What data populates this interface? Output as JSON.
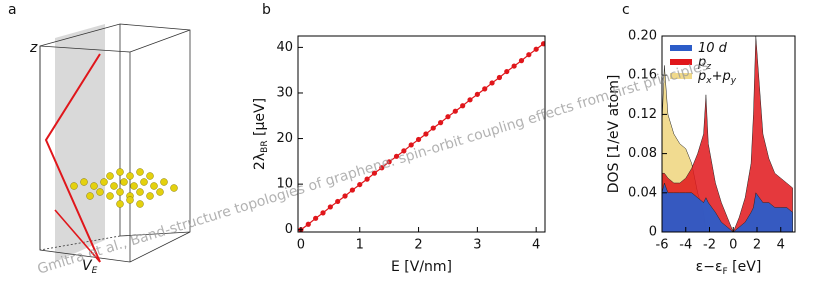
{
  "watermark": "Gmitra et al., Band-structure topologies of graphene: spin-orbit coupling effects from first principles",
  "chart_data": [
    {
      "type": "diagram",
      "panel_label": "a",
      "axis_label": "z",
      "field_label": [
        "V",
        "E"
      ]
    },
    {
      "type": "line",
      "panel_label": "b",
      "xlabel": [
        "E",
        " [V/nm]"
      ],
      "ylabel": [
        "2λ",
        "BR",
        " [μeV]"
      ],
      "x": [
        0,
        0.125,
        0.25,
        0.375,
        0.5,
        0.625,
        0.75,
        0.875,
        1,
        1.125,
        1.25,
        1.375,
        1.5,
        1.625,
        1.75,
        1.875,
        2,
        2.125,
        2.25,
        2.375,
        2.5,
        2.625,
        2.75,
        2.875,
        3,
        3.125,
        3.25,
        3.375,
        3.5,
        3.625,
        3.75,
        3.875,
        4,
        4.125
      ],
      "series": [
        {
          "color": "#e0161b",
          "values": [
            0,
            1.2,
            2.5,
            3.7,
            5.0,
            6.2,
            7.4,
            8.7,
            9.9,
            11.1,
            12.4,
            13.6,
            14.9,
            16.1,
            17.3,
            18.6,
            19.8,
            21.0,
            22.3,
            23.5,
            24.8,
            26.0,
            27.2,
            28.5,
            29.7,
            30.9,
            32.2,
            33.4,
            34.7,
            35.9,
            37.1,
            38.4,
            39.6,
            40.8
          ]
        }
      ],
      "xlim": [
        -0.05,
        4.15
      ],
      "ylim": [
        -0.5,
        42.5
      ],
      "xticks": [
        0,
        1,
        2,
        3,
        4
      ],
      "yticks": [
        0,
        10,
        20,
        30,
        40
      ]
    },
    {
      "type": "area",
      "panel_label": "c",
      "xlabel": [
        "ε−ε",
        "F",
        " [eV]"
      ],
      "ylabel": "DOS [1/eV atom]",
      "x": [
        -6,
        -5.8,
        -5.5,
        -5,
        -4.5,
        -4,
        -3.5,
        -3,
        -2.5,
        -2.3,
        -2.1,
        -1.5,
        -1,
        -0.5,
        0,
        0.5,
        1,
        1.5,
        1.7,
        1.9,
        2.5,
        3,
        3.5,
        4,
        4.5,
        5
      ],
      "series": [
        {
          "name": [
            "p",
            "x",
            "+p",
            "y"
          ],
          "color": "#f0d98a",
          "values": [
            0.11,
            0.17,
            0.12,
            0.1,
            0.09,
            0.085,
            0.07,
            0.04,
            0.02,
            0,
            0,
            0,
            0,
            0,
            0,
            0,
            0,
            0,
            0,
            0,
            0,
            0,
            0,
            0,
            0,
            0
          ]
        },
        {
          "name": [
            "p",
            "z"
          ],
          "color": "#e0161b",
          "values": [
            0.06,
            0.06,
            0.055,
            0.05,
            0.05,
            0.055,
            0.065,
            0.08,
            0.1,
            0.14,
            0.09,
            0.05,
            0.03,
            0.015,
            0,
            0.015,
            0.035,
            0.07,
            0.12,
            0.2,
            0.1,
            0.075,
            0.06,
            0.055,
            0.05,
            0.045
          ]
        },
        {
          "name": [
            "10 d"
          ],
          "color": "#2c5cc8",
          "values": [
            0.04,
            0.05,
            0.04,
            0.04,
            0.04,
            0.04,
            0.04,
            0.035,
            0.03,
            0.035,
            0.03,
            0.02,
            0.01,
            0.005,
            0,
            0.005,
            0.01,
            0.02,
            0.025,
            0.04,
            0.03,
            0.03,
            0.025,
            0.025,
            0.025,
            0.02
          ]
        }
      ],
      "xlim": [
        -6,
        5.2
      ],
      "ylim": [
        0,
        0.2
      ],
      "xticks": [
        -6,
        -4,
        -2,
        0,
        2,
        4
      ],
      "yticks": [
        0,
        0.04,
        0.08,
        0.12,
        0.16,
        {
          "value": 0.2,
          "label": "0.20"
        }
      ]
    }
  ]
}
